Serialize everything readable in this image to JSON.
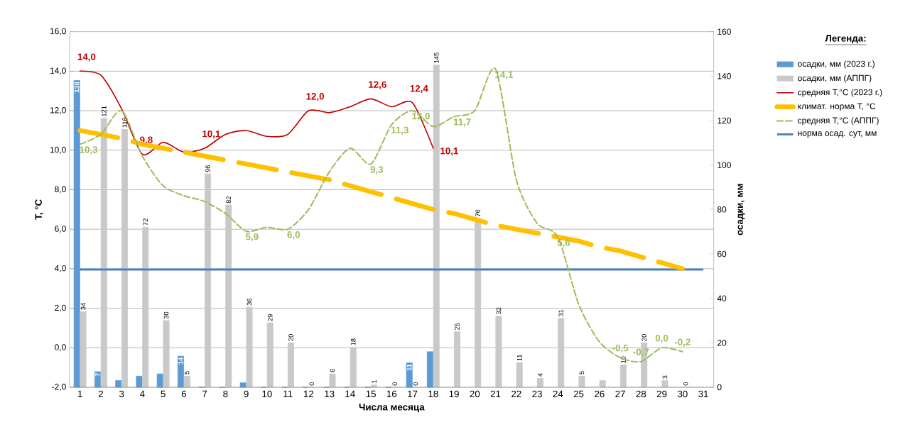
{
  "chart_data": {
    "type": "bar",
    "xlabel": "Числа месяца",
    "ylabel": "T, °C",
    "y2label": "осадки, мм",
    "legend_title": "Легенда:",
    "categories": [
      "1",
      "2",
      "3",
      "4",
      "5",
      "6",
      "7",
      "8",
      "9",
      "10",
      "11",
      "12",
      "13",
      "14",
      "15",
      "16",
      "17",
      "18",
      "19",
      "20",
      "21",
      "22",
      "23",
      "24",
      "25",
      "26",
      "27",
      "28",
      "29",
      "30",
      "31"
    ],
    "ylim": [
      -2,
      16
    ],
    "yticks": [
      {
        "value": -2,
        "label": "-2,0"
      },
      {
        "value": 0,
        "label": "0,0"
      },
      {
        "value": 2,
        "label": "2,0"
      },
      {
        "value": 4,
        "label": "4,0"
      },
      {
        "value": 6,
        "label": "6,0"
      },
      {
        "value": 8,
        "label": "8,0"
      },
      {
        "value": 10,
        "label": "10,0"
      },
      {
        "value": 12,
        "label": "12,0"
      },
      {
        "value": 14,
        "label": "14,0"
      },
      {
        "value": 16,
        "label": "16,0"
      }
    ],
    "y2lim": [
      0,
      160
    ],
    "y2ticks": [
      0,
      20,
      40,
      60,
      80,
      100,
      120,
      140,
      160
    ],
    "grid": "y",
    "legend": "right",
    "series": [
      {
        "name": "осадки, мм (2023 г.)",
        "axis": "y2",
        "color": "#5b9bd5",
        "values": [
          138,
          7,
          3,
          5,
          6,
          14,
          0,
          0,
          2,
          0,
          0,
          0,
          0,
          0,
          0,
          0,
          11,
          16,
          null,
          null,
          null,
          null,
          null,
          null,
          null,
          null,
          null,
          null,
          null,
          null,
          null
        ],
        "value_labels": [
          "138",
          "7",
          null,
          null,
          null,
          "14",
          null,
          null,
          null,
          null,
          null,
          null,
          null,
          null,
          null,
          null,
          "11",
          null,
          null,
          null,
          null,
          null,
          null,
          null,
          null,
          null,
          null,
          null,
          null,
          null,
          null
        ]
      },
      {
        "name": "осадки, мм (АППГ)",
        "axis": "y2",
        "color": "#c9c9c9",
        "values": [
          34,
          121,
          116,
          72,
          30,
          5,
          96,
          82,
          36,
          29,
          20,
          0,
          6,
          18,
          1,
          0,
          0,
          145,
          25,
          76,
          32,
          11,
          4,
          31,
          5,
          3,
          10,
          20,
          3,
          0,
          null
        ],
        "value_labels": [
          "34",
          "121",
          "116",
          "72",
          "30",
          "5",
          "96",
          "82",
          "36",
          "29",
          "20",
          "0",
          "6",
          "18",
          "1",
          "0",
          "0",
          "145",
          "25",
          "76",
          "32",
          "11",
          "4",
          "31",
          "5",
          null,
          "10",
          "20",
          "3",
          "0",
          null
        ]
      },
      {
        "name": "средняя T,°C (2023 г.)",
        "type": "line",
        "color": "#c00000",
        "values": [
          14.0,
          13.8,
          12.1,
          9.8,
          10.4,
          9.9,
          10.1,
          10.8,
          11.0,
          10.7,
          10.8,
          12.0,
          11.9,
          12.2,
          12.6,
          12.2,
          12.4,
          10.1,
          null,
          null,
          null,
          null,
          null,
          null,
          null,
          null,
          null,
          null,
          null,
          null,
          null
        ],
        "value_labels": [
          "14,0",
          null,
          null,
          "9,8",
          null,
          null,
          "10,1",
          null,
          null,
          null,
          null,
          "12,0",
          null,
          null,
          "12,6",
          null,
          "12,4",
          "10,1",
          null,
          null,
          null,
          null,
          null,
          null,
          null,
          null,
          null,
          null,
          null,
          null,
          null
        ]
      },
      {
        "name": "климат. норма T, °C",
        "type": "line",
        "line_style": "dashed",
        "color": "#ffc000",
        "values": [
          11.0,
          10.8,
          10.6,
          10.3,
          10.1,
          9.9,
          9.7,
          9.5,
          9.3,
          9.1,
          8.9,
          8.7,
          8.5,
          8.2,
          7.9,
          7.6,
          7.3,
          7.0,
          6.8,
          6.5,
          6.2,
          6.0,
          5.8,
          5.6,
          5.4,
          5.1,
          4.9,
          4.6,
          4.3,
          4.0,
          null
        ]
      },
      {
        "name": "средняя T,°C (АППГ)",
        "type": "line",
        "line_style": "dashed",
        "color": "#9bbb59",
        "values": [
          10.3,
          10.8,
          12.0,
          9.7,
          8.2,
          7.7,
          7.4,
          6.8,
          5.9,
          6.1,
          6.0,
          7.0,
          8.9,
          10.1,
          9.3,
          11.3,
          12.0,
          11.2,
          11.7,
          12.0,
          14.1,
          8.5,
          6.3,
          5.6,
          2.2,
          0.3,
          -0.5,
          -0.7,
          0.0,
          -0.2,
          null
        ],
        "value_labels": [
          "10,3",
          null,
          null,
          null,
          null,
          null,
          null,
          null,
          "5,9",
          null,
          "6,0",
          null,
          null,
          null,
          "9,3",
          "11,3",
          "12,0",
          null,
          "11,7",
          null,
          "14,1",
          null,
          null,
          "5,6",
          null,
          null,
          "-0,5",
          "-0,7",
          "0,0",
          "-0,2",
          null
        ]
      },
      {
        "name": "норма осад. сут, мм",
        "type": "line",
        "axis": "y2",
        "color": "#4f81bd",
        "values": [
          53,
          53,
          53,
          53,
          53,
          53,
          53,
          53,
          53,
          53,
          53,
          53,
          53,
          53,
          53,
          53,
          53,
          53,
          53,
          53,
          53,
          53,
          53,
          53,
          53,
          53,
          53,
          53,
          53,
          53,
          53
        ]
      }
    ]
  }
}
